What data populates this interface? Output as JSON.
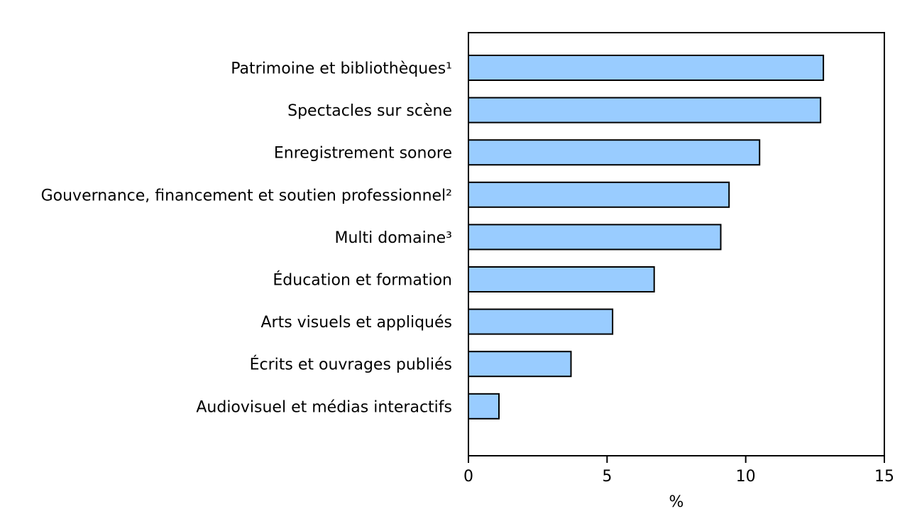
{
  "chart_data": {
    "type": "bar",
    "orientation": "horizontal",
    "categories": [
      "Patrimoine et bibliothèques¹",
      "Spectacles sur scène",
      "Enregistrement sonore",
      "Gouvernance, financement et soutien professionnel²",
      "Multi domaine³",
      "Éducation et formation",
      "Arts visuels et appliqués",
      "Écrits et ouvrages publiés",
      "Audiovisuel et médias interactifs"
    ],
    "values": [
      12.8,
      12.7,
      10.5,
      9.4,
      9.1,
      6.7,
      5.2,
      3.7,
      1.1
    ],
    "xlabel": "%",
    "ylabel": "",
    "xlim": [
      0,
      15
    ],
    "xticks": [
      0,
      5,
      10,
      15
    ],
    "xtick_labels": [
      "0",
      "5",
      "10",
      "15"
    ],
    "grid": false,
    "bar_color": "#99ccff",
    "bar_stroke": "#000000"
  }
}
